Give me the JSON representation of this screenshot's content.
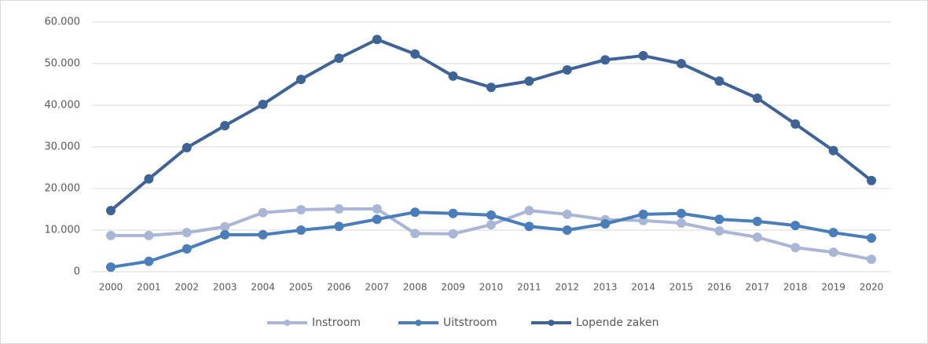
{
  "chart_data": {
    "type": "line",
    "categories": [
      "2000",
      "2001",
      "2002",
      "2003",
      "2004",
      "2005",
      "2006",
      "2007",
      "2008",
      "2009",
      "2010",
      "2011",
      "2012",
      "2013",
      "2014",
      "2015",
      "2016",
      "2017",
      "2018",
      "2019",
      "2020"
    ],
    "series": [
      {
        "name": "Instroom",
        "color": "#a9b6d6",
        "values": [
          8700,
          8700,
          9400,
          10800,
          14200,
          14900,
          15100,
          15100,
          9200,
          9100,
          11300,
          14700,
          13800,
          12500,
          12300,
          11700,
          9800,
          8300,
          5800,
          4700,
          3000
        ]
      },
      {
        "name": "Uitstroom",
        "color": "#4a7ebb",
        "values": [
          1100,
          2500,
          5500,
          8900,
          8900,
          10000,
          10900,
          12600,
          14300,
          14000,
          13600,
          10900,
          10000,
          11500,
          13800,
          14000,
          12600,
          12100,
          11100,
          9400,
          8100
        ]
      },
      {
        "name": "Lopende zaken",
        "color": "#3e6497",
        "values": [
          14700,
          22300,
          29800,
          35100,
          40200,
          46200,
          51300,
          55800,
          52300,
          47000,
          44300,
          45800,
          48500,
          50900,
          51900,
          50000,
          45800,
          41700,
          35500,
          29100,
          21900
        ]
      }
    ],
    "ylim": [
      0,
      60000
    ],
    "yticks": [
      0,
      {
        "value": 10000,
        "label": "10.000"
      },
      {
        "value": 20000,
        "label": "20.000"
      },
      {
        "value": 30000,
        "label": "30.000"
      },
      {
        "value": 40000,
        "label": "40.000"
      },
      {
        "value": 50000,
        "label": "50.000"
      },
      {
        "value": 60000,
        "label": "60.000"
      }
    ],
    "grid": true,
    "legend": "bottom"
  }
}
